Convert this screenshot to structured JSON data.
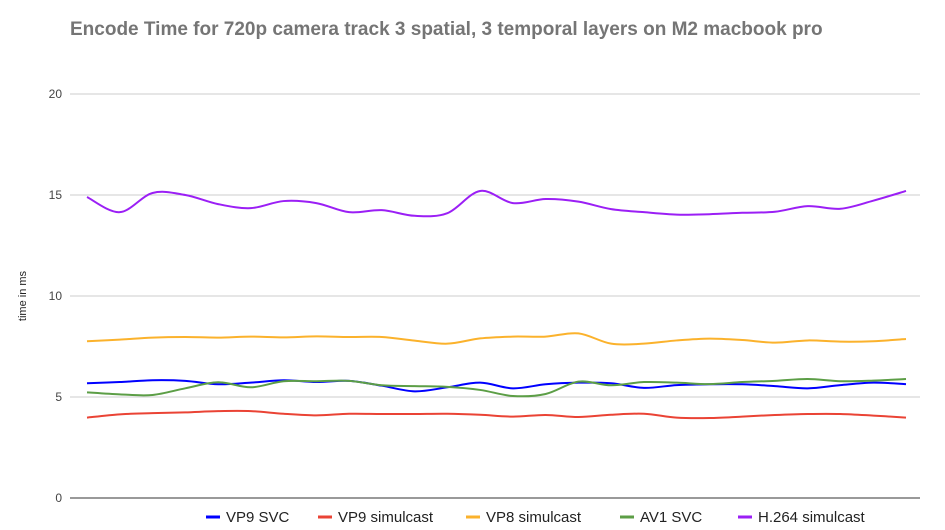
{
  "chart_data": {
    "type": "line",
    "title": "Encode Time for 720p camera track 3 spatial, 3 temporal layers on M2 macbook pro",
    "xlabel": "",
    "ylabel": "time in ms",
    "ylim": [
      0,
      20
    ],
    "yticks": [
      "0",
      "5",
      "10",
      "15",
      "20"
    ],
    "grid": true,
    "smooth": true,
    "legend_position": "bottom",
    "series": [
      {
        "name": "VP9 SVC",
        "color": "#0000ff",
        "values": [
          5.68,
          5.74,
          5.83,
          5.8,
          5.63,
          5.71,
          5.83,
          5.74,
          5.8,
          5.56,
          5.28,
          5.48,
          5.71,
          5.43,
          5.63,
          5.71,
          5.68,
          5.45,
          5.59,
          5.63,
          5.63,
          5.54,
          5.43,
          5.59,
          5.71,
          5.64
        ]
      },
      {
        "name": "VP9 simulcast",
        "color": "#ea4335",
        "values": [
          3.98,
          4.14,
          4.2,
          4.24,
          4.3,
          4.3,
          4.17,
          4.09,
          4.17,
          4.16,
          4.16,
          4.17,
          4.12,
          4.03,
          4.11,
          4.01,
          4.12,
          4.17,
          3.98,
          3.96,
          4.03,
          4.11,
          4.16,
          4.16,
          4.08,
          3.98
        ]
      },
      {
        "name": "VP8 simulcast",
        "color": "#fbb22c",
        "values": [
          7.76,
          7.84,
          7.94,
          7.97,
          7.94,
          7.99,
          7.95,
          8.0,
          7.97,
          7.97,
          7.79,
          7.64,
          7.9,
          7.99,
          7.99,
          8.15,
          7.64,
          7.64,
          7.8,
          7.89,
          7.82,
          7.69,
          7.8,
          7.74,
          7.76,
          7.87
        ]
      },
      {
        "name": "AV1 SVC",
        "color": "#5c9e46",
        "values": [
          5.23,
          5.13,
          5.1,
          5.43,
          5.73,
          5.48,
          5.78,
          5.78,
          5.8,
          5.58,
          5.54,
          5.5,
          5.35,
          5.05,
          5.15,
          5.76,
          5.58,
          5.74,
          5.71,
          5.64,
          5.74,
          5.8,
          5.89,
          5.78,
          5.81,
          5.89
        ]
      },
      {
        "name": "H.264 simulcast",
        "color": "#9b1ff5",
        "values": [
          14.9,
          14.15,
          15.1,
          15.0,
          14.55,
          14.35,
          14.7,
          14.6,
          14.15,
          14.25,
          13.97,
          14.1,
          15.2,
          14.6,
          14.8,
          14.67,
          14.3,
          14.15,
          14.03,
          14.05,
          14.12,
          14.17,
          14.45,
          14.32,
          14.72,
          15.2
        ]
      }
    ]
  }
}
